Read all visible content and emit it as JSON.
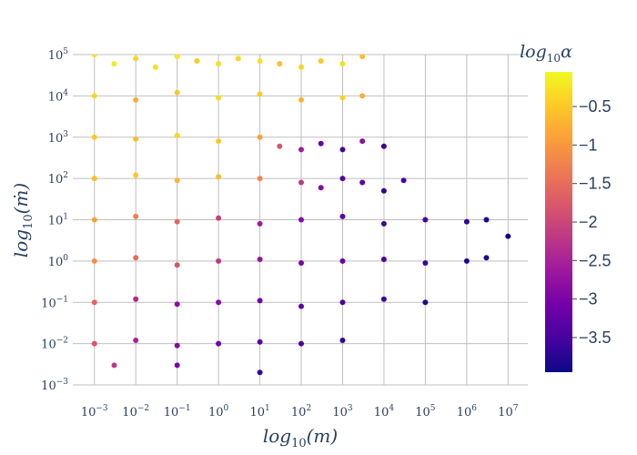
{
  "chart_data": {
    "type": "scatter",
    "xlabel": "log10(m)",
    "ylabel": "log10(ṁ)",
    "xscale": "log",
    "yscale": "log",
    "x_ticks": [
      "10^-3",
      "10^-2",
      "10^-1",
      "10^0",
      "10^1",
      "10^2",
      "10^3",
      "10^4",
      "10^5",
      "10^6",
      "10^7"
    ],
    "y_ticks": [
      "10^-3",
      "10^-2",
      "10^-1",
      "10^0",
      "10^1",
      "10^2",
      "10^3",
      "10^4",
      "10^5"
    ],
    "xlim": [
      0.0003,
      30000000
    ],
    "ylim": [
      0.001,
      100000
    ],
    "grid": true,
    "colorbar": {
      "title": "log10α",
      "ticks": [
        -0.5,
        -1,
        -1.5,
        -2,
        -2.5,
        -3,
        -3.5
      ],
      "tick_labels": [
        "−0.5",
        "−1",
        "−1.5",
        "−2",
        "−2.5",
        "−3",
        "−3.5"
      ],
      "range": [
        -3.95,
        -0.05
      ],
      "colorscale": "plasma"
    },
    "series": [
      {
        "points_note": "",
        "points": [
          [
            0.001,
            100000,
            -0.3
          ],
          [
            0.003,
            60000,
            -0.2
          ],
          [
            0.01,
            80000,
            -0.4
          ],
          [
            0.03,
            50000,
            -0.3
          ],
          [
            0.1,
            90000,
            -0.2
          ],
          [
            0.3,
            70000,
            -0.5
          ],
          [
            1,
            60000,
            -0.3
          ],
          [
            3,
            80000,
            -0.4
          ],
          [
            10,
            70000,
            -0.3
          ],
          [
            30,
            60000,
            -0.6
          ],
          [
            100,
            50000,
            -0.4
          ],
          [
            300,
            70000,
            -0.5
          ],
          [
            1000,
            60000,
            -0.3
          ],
          [
            3000,
            90000,
            -0.6
          ],
          [
            0.001,
            10000,
            -0.4
          ],
          [
            0.01,
            8000,
            -0.8
          ],
          [
            0.1,
            12000,
            -0.5
          ],
          [
            1,
            9000,
            -0.3
          ],
          [
            10,
            11000,
            -0.5
          ],
          [
            100,
            8000,
            -0.7
          ],
          [
            1000,
            9000,
            -0.4
          ],
          [
            3000,
            10000,
            -0.8
          ],
          [
            0.001,
            1000,
            -0.5
          ],
          [
            0.01,
            900,
            -0.6
          ],
          [
            0.1,
            1100,
            -0.4
          ],
          [
            1,
            800,
            -0.5
          ],
          [
            10,
            1000,
            -0.9
          ],
          [
            30,
            600,
            -1.8
          ],
          [
            100,
            500,
            -2.6
          ],
          [
            300,
            700,
            -3.2
          ],
          [
            1000,
            500,
            -3.5
          ],
          [
            3000,
            800,
            -2.8
          ],
          [
            10000,
            600,
            -3.6
          ],
          [
            0.001,
            100,
            -0.6
          ],
          [
            0.01,
            120,
            -0.5
          ],
          [
            0.1,
            90,
            -0.7
          ],
          [
            1,
            110,
            -0.6
          ],
          [
            10,
            100,
            -1.2
          ],
          [
            100,
            80,
            -2.2
          ],
          [
            300,
            60,
            -2.9
          ],
          [
            1000,
            100,
            -3.4
          ],
          [
            3000,
            80,
            -3.3
          ],
          [
            10000,
            50,
            -3.7
          ],
          [
            30000,
            90,
            -3.5
          ],
          [
            0.001,
            10,
            -0.9
          ],
          [
            0.01,
            12,
            -1.3
          ],
          [
            0.1,
            9,
            -1.6
          ],
          [
            1,
            11,
            -2.1
          ],
          [
            10,
            8,
            -2.6
          ],
          [
            100,
            10,
            -2.9
          ],
          [
            1000,
            12,
            -3.3
          ],
          [
            10000,
            8,
            -3.6
          ],
          [
            100000,
            10,
            -3.5
          ],
          [
            1000000,
            9,
            -3.7
          ],
          [
            3000000,
            10,
            -3.8
          ],
          [
            10000000,
            4,
            -3.9
          ],
          [
            0.001,
            1,
            -1.1
          ],
          [
            0.01,
            1.2,
            -1.5
          ],
          [
            0.1,
            0.8,
            -1.8
          ],
          [
            1,
            1,
            -2.2
          ],
          [
            10,
            1.1,
            -2.7
          ],
          [
            100,
            0.9,
            -3.0
          ],
          [
            1000,
            1,
            -3.2
          ],
          [
            10000,
            1.1,
            -3.5
          ],
          [
            100000,
            0.9,
            -3.6
          ],
          [
            1000000,
            1,
            -3.8
          ],
          [
            3000000,
            1.2,
            -3.8
          ],
          [
            0.001,
            0.1,
            -1.6
          ],
          [
            0.01,
            0.12,
            -2.4
          ],
          [
            0.1,
            0.09,
            -2.8
          ],
          [
            1,
            0.1,
            -2.9
          ],
          [
            10,
            0.11,
            -3.1
          ],
          [
            100,
            0.08,
            -3.3
          ],
          [
            1000,
            0.1,
            -3.5
          ],
          [
            10000,
            0.12,
            -3.6
          ],
          [
            100000,
            0.1,
            -3.8
          ],
          [
            0.001,
            0.01,
            -1.8
          ],
          [
            0.01,
            0.012,
            -2.5
          ],
          [
            0.1,
            0.009,
            -2.9
          ],
          [
            1,
            0.01,
            -3.1
          ],
          [
            10,
            0.011,
            -3.3
          ],
          [
            100,
            0.01,
            -3.5
          ],
          [
            1000,
            0.012,
            -3.7
          ],
          [
            0.003,
            0.003,
            -2.2
          ],
          [
            0.1,
            0.003,
            -3.0
          ],
          [
            10,
            0.002,
            -3.6
          ]
        ]
      }
    ]
  }
}
